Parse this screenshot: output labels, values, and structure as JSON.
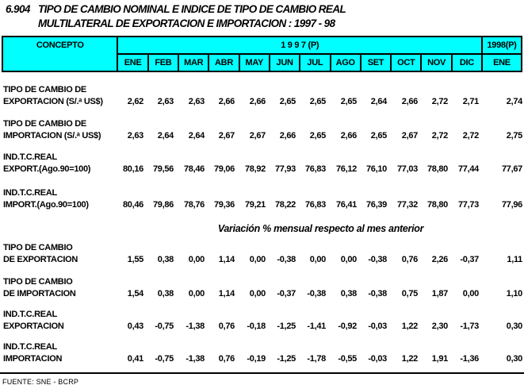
{
  "title": {
    "number": "6.904",
    "line1": "TIPO DE CAMBIO NOMINAL E INDICE DE TIPO DE CAMBIO REAL",
    "line2": "MULTILATERAL DE EXPORTACION E IMPORTACION : 1997 - 98"
  },
  "header": {
    "concept": "CONCEPTO",
    "year1": "1 9 9 7 (P)",
    "year2": "1998(P)",
    "months": [
      "ENE",
      "FEB",
      "MAR",
      "ABR",
      "MAY",
      "JUN",
      "JUL",
      "AGO",
      "SET",
      "OCT",
      "NOV",
      "DIC",
      "ENE"
    ]
  },
  "levels": [
    {
      "label1": "TIPO DE CAMBIO DE",
      "label2": "EXPORTACION (S/.ᵃ US$)",
      "values": [
        "2,62",
        "2,63",
        "2,63",
        "2,66",
        "2,66",
        "2,65",
        "2,65",
        "2,65",
        "2,64",
        "2,66",
        "2,72",
        "2,71",
        "2,74"
      ]
    },
    {
      "label1": "TIPO DE CAMBIO DE",
      "label2": "IMPORTACION (S/.ᵃ US$)",
      "values": [
        "2,63",
        "2,64",
        "2,64",
        "2,67",
        "2,67",
        "2,66",
        "2,65",
        "2,66",
        "2,65",
        "2,67",
        "2,72",
        "2,72",
        "2,75"
      ]
    },
    {
      "label1": "IND.T.C.REAL",
      "label2": "EXPORT.(Ago.90=100)",
      "values": [
        "80,16",
        "79,56",
        "78,46",
        "79,06",
        "78,92",
        "77,93",
        "76,83",
        "76,12",
        "76,10",
        "77,03",
        "78,80",
        "77,44",
        "77,67"
      ]
    },
    {
      "label1": "IND.T.C.REAL",
      "label2": "IMPORT.(Ago.90=100)",
      "values": [
        "80,46",
        "79,86",
        "78,76",
        "79,36",
        "79,21",
        "78,22",
        "76,83",
        "76,41",
        "76,39",
        "77,32",
        "78,80",
        "77,73",
        "77,96"
      ]
    }
  ],
  "variation_title": "Variación % mensual respecto al mes anterior",
  "variations": [
    {
      "label1": "TIPO DE CAMBIO",
      "label2": "DE EXPORTACION",
      "values": [
        "1,55",
        "0,38",
        "0,00",
        "1,14",
        "0,00",
        "-0,38",
        "0,00",
        "0,00",
        "-0,38",
        "0,76",
        "2,26",
        "-0,37",
        "1,11"
      ]
    },
    {
      "label1": "TIPO DE CAMBIO",
      "label2": "DE IMPORTACION",
      "values": [
        "1,54",
        "0,38",
        "0,00",
        "1,14",
        "0,00",
        "-0,37",
        "-0,38",
        "0,38",
        "-0,38",
        "0,75",
        "1,87",
        "0,00",
        "1,10"
      ]
    },
    {
      "label1": "IND.T.C.REAL",
      "label2": "EXPORTACION",
      "values": [
        "0,43",
        "-0,75",
        "-1,38",
        "0,76",
        "-0,18",
        "-1,25",
        "-1,41",
        "-0,92",
        "-0,03",
        "1,22",
        "2,30",
        "-1,73",
        "0,30"
      ]
    },
    {
      "label1": "IND.T.C.REAL",
      "label2": "IMPORTACION",
      "values": [
        "0,41",
        "-0,75",
        "-1,38",
        "0,76",
        "-0,19",
        "-1,25",
        "-1,78",
        "-0,55",
        "-0,03",
        "1,22",
        "1,91",
        "-1,36",
        "0,30"
      ]
    }
  ],
  "footer": "FUENTE: SNE - BCRP"
}
